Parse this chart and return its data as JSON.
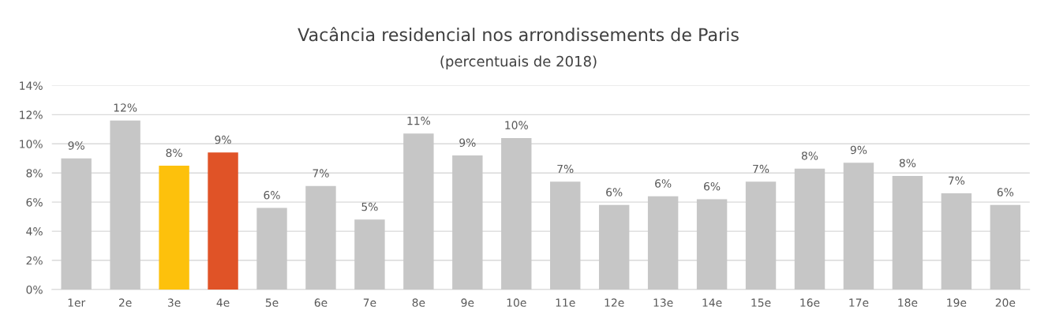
{
  "chart_data": {
    "type": "bar",
    "title": "Vacância residencial nos arrondissements de Paris",
    "subtitle": "(percentuais de 2018)",
    "categories": [
      "1er",
      "2e",
      "3e",
      "4e",
      "5e",
      "6e",
      "7e",
      "8e",
      "9e",
      "10e",
      "11e",
      "12e",
      "13e",
      "14e",
      "15e",
      "16e",
      "17e",
      "18e",
      "19e",
      "20e"
    ],
    "values": [
      9.0,
      11.6,
      8.5,
      9.4,
      5.6,
      7.1,
      4.8,
      10.7,
      9.2,
      10.4,
      7.4,
      5.8,
      6.4,
      6.2,
      7.4,
      8.3,
      8.7,
      7.8,
      6.6,
      5.8
    ],
    "value_labels": [
      "9%",
      "12%",
      "8%",
      "9%",
      "6%",
      "7%",
      "5%",
      "11%",
      "9%",
      "10%",
      "7%",
      "6%",
      "6%",
      "6%",
      "7%",
      "8%",
      "9%",
      "8%",
      "7%",
      "6%"
    ],
    "colors": [
      "#c6c6c6",
      "#c6c6c6",
      "#fdc10c",
      "#e05327",
      "#c6c6c6",
      "#c6c6c6",
      "#c6c6c6",
      "#c6c6c6",
      "#c6c6c6",
      "#c6c6c6",
      "#c6c6c6",
      "#c6c6c6",
      "#c6c6c6",
      "#c6c6c6",
      "#c6c6c6",
      "#c6c6c6",
      "#c6c6c6",
      "#c6c6c6",
      "#c6c6c6",
      "#c6c6c6"
    ],
    "ylim": [
      0,
      14
    ],
    "yticks": [
      {
        "value": 0,
        "label": "0%"
      },
      {
        "value": 2,
        "label": "2%"
      },
      {
        "value": 4,
        "label": "4%"
      },
      {
        "value": 6,
        "label": "6%"
      },
      {
        "value": 8,
        "label": "8%"
      },
      {
        "value": 10,
        "label": "10%"
      },
      {
        "value": 12,
        "label": "12%"
      },
      {
        "value": 14,
        "label": "14%"
      }
    ],
    "grid": "y",
    "legend": false
  }
}
